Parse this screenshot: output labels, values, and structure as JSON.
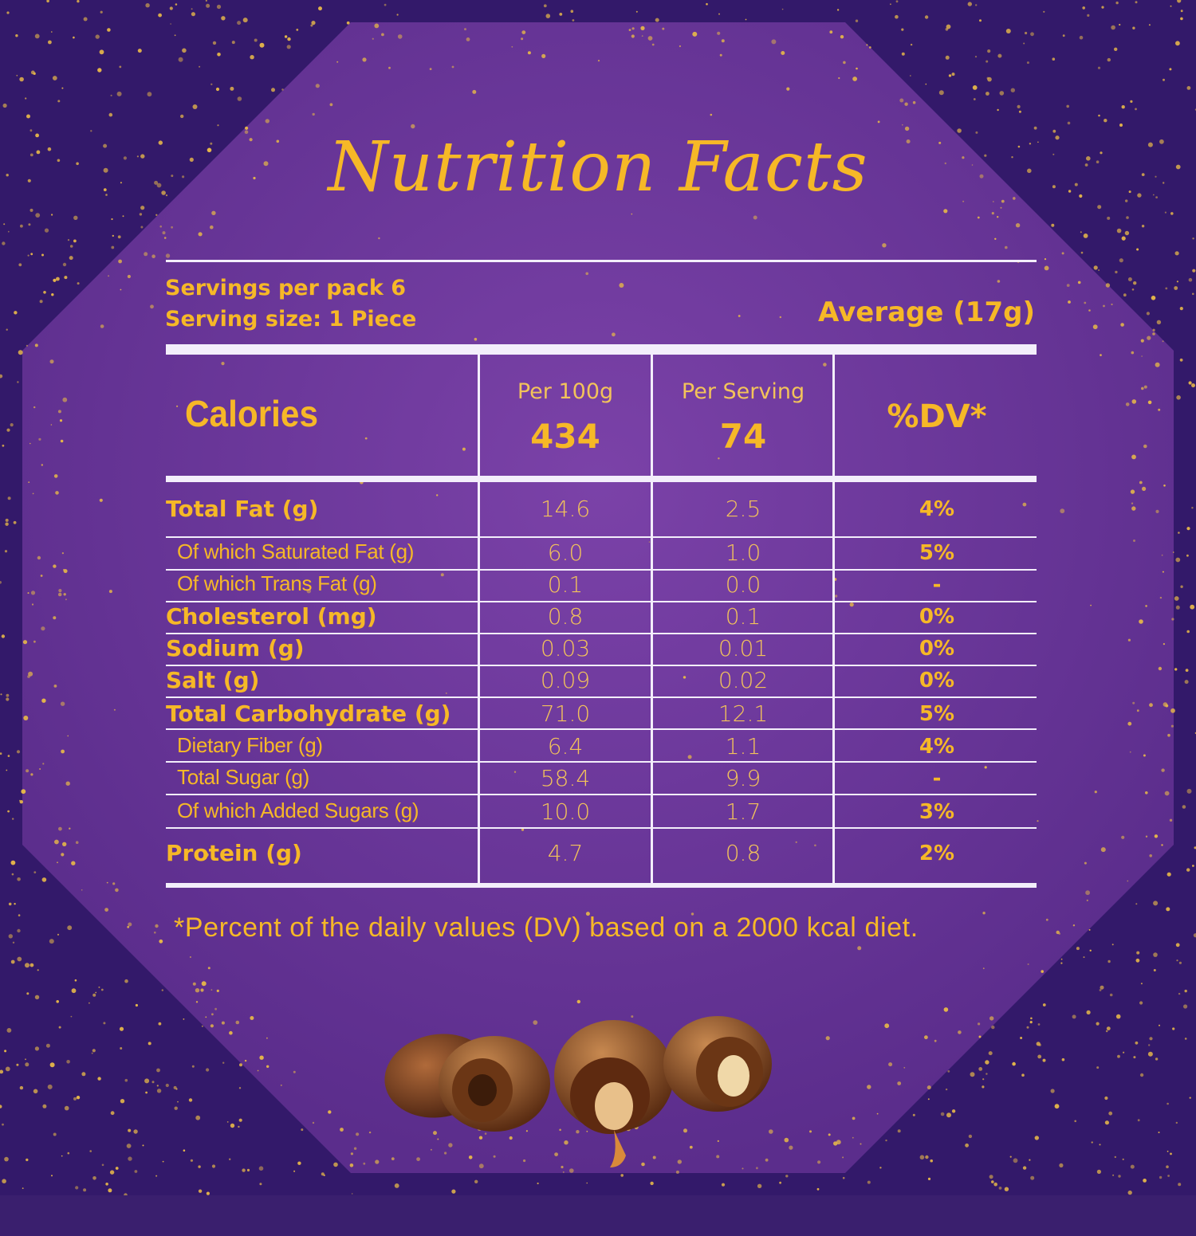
{
  "title": "Nutrition Facts",
  "servings_per_pack_label": "Servings per pack",
  "servings_per_pack_value": "6",
  "serving_size": "Serving size: 1 Piece",
  "average": "Average (17g)",
  "header": {
    "calories": "Calories",
    "per100_label": "Per 100g",
    "per100_value": "434",
    "perserving_label": "Per Serving",
    "perserving_value": "74",
    "dv": "%DV*"
  },
  "rows": [
    {
      "label": "Total Fat (g)",
      "per100": "14.6",
      "serving": "2.5",
      "dv": "4%"
    },
    {
      "label": "Of which Saturated Fat (g)",
      "per100": "6.0",
      "serving": "1.0",
      "dv": "5%"
    },
    {
      "label": "Of which Trans Fat (g)",
      "per100": "0.1",
      "serving": "0.0",
      "dv": "-"
    },
    {
      "label": "Cholesterol (mg)",
      "per100": "0.8",
      "serving": "0.1",
      "dv": "0%"
    },
    {
      "label": "Sodium (g)",
      "per100": "0.03",
      "serving": "0.01",
      "dv": "0%"
    },
    {
      "label": "Salt (g)",
      "per100": "0.09",
      "serving": "0.02",
      "dv": "0%"
    },
    {
      "label": "Total Carbohydrate (g)",
      "per100": "71.0",
      "serving": "12.1",
      "dv": "5%"
    },
    {
      "label": "Dietary Fiber (g)",
      "per100": "6.4",
      "serving": "1.1",
      "dv": "4%"
    },
    {
      "label": "Total Sugar (g)",
      "per100": "58.4",
      "serving": "9.9",
      "dv": "-"
    },
    {
      "label": "Of which Added Sugars (g)",
      "per100": "10.0",
      "serving": "1.7",
      "dv": "3%"
    },
    {
      "label": "Protein (g)",
      "per100": "4.7",
      "serving": "0.8",
      "dv": "2%"
    }
  ],
  "footnote": "*Percent of the daily values (DV) based on a 2000 kcal diet.",
  "colors": {
    "gold": "#f6b827",
    "purple": "#6a3a96",
    "dark_purple": "#3a1f6e"
  }
}
